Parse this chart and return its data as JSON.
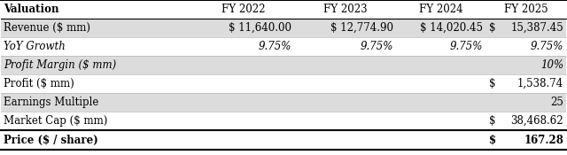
{
  "title_col": "Valuation",
  "columns": [
    "FY 2022",
    "FY 2023",
    "FY 2024",
    "FY 2025"
  ],
  "rows": [
    {
      "label": "Revenue ($ mm)",
      "values_fy22": "$ 11,640.00",
      "values_fy23": "$ 12,774.90",
      "values_fy24": "$ 14,020.45",
      "dollar_fy25": "$",
      "num_fy25": "15,387.45",
      "bg": "#dcdcdc",
      "italic": false,
      "bold": false
    },
    {
      "label": "YoY Growth",
      "values_fy22": "9.75%",
      "values_fy23": "9.75%",
      "values_fy24": "9.75%",
      "dollar_fy25": "",
      "num_fy25": "9.75%",
      "bg": "#ffffff",
      "italic": true,
      "bold": false
    },
    {
      "label": "Profit Margin ($ mm)",
      "values_fy22": "",
      "values_fy23": "",
      "values_fy24": "",
      "dollar_fy25": "",
      "num_fy25": "10%",
      "bg": "#dcdcdc",
      "italic": true,
      "bold": false
    },
    {
      "label": "Profit ($ mm)",
      "values_fy22": "",
      "values_fy23": "",
      "values_fy24": "",
      "dollar_fy25": "$",
      "num_fy25": "1,538.74",
      "bg": "#ffffff",
      "italic": false,
      "bold": false
    },
    {
      "label": "Earnings Multiple",
      "values_fy22": "",
      "values_fy23": "",
      "values_fy24": "",
      "dollar_fy25": "",
      "num_fy25": "25",
      "bg": "#dcdcdc",
      "italic": false,
      "bold": false
    },
    {
      "label": "Market Cap ($ mm)",
      "values_fy22": "",
      "values_fy23": "",
      "values_fy24": "",
      "dollar_fy25": "$",
      "num_fy25": "38,468.62",
      "bg": "#ffffff",
      "italic": false,
      "bold": false
    }
  ],
  "last_row": {
    "label": "Price ($ / share)",
    "dollar_fy25": "$",
    "num_fy25": "167.28",
    "bg": "#ffffff",
    "bold": true
  },
  "header_bg": "#ffffff",
  "border_color": "#000000",
  "text_color": "#000000",
  "font_size": 8.5,
  "header_font_size": 8.5
}
